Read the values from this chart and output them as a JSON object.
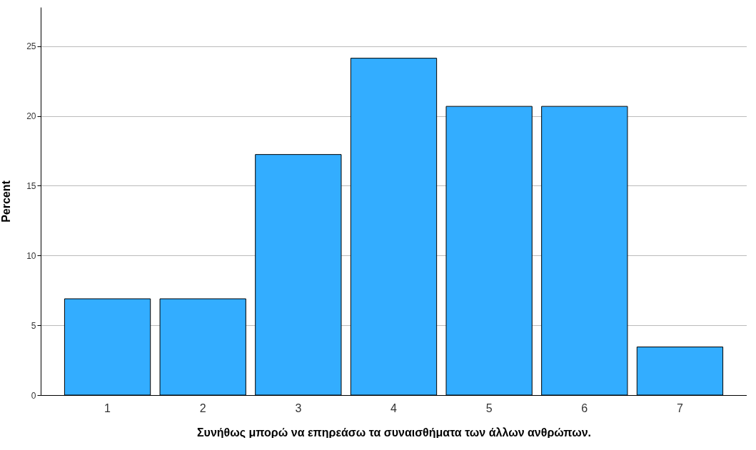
{
  "chart_data": {
    "type": "bar",
    "xlabel": "Συνήθως μπορώ να επηρεάσω τα συναισθήματα των άλλων ανθρώπων.",
    "ylabel": "Percent",
    "categories": [
      "1",
      "2",
      "3",
      "4",
      "5",
      "6",
      "7"
    ],
    "values": [
      6.9,
      6.9,
      17.24,
      24.14,
      20.69,
      20.69,
      3.45
    ],
    "color": "#33adff",
    "ylim": [
      0,
      27.8
    ],
    "yticks": [
      0,
      5,
      10,
      15,
      20,
      25
    ],
    "grid": "y"
  }
}
